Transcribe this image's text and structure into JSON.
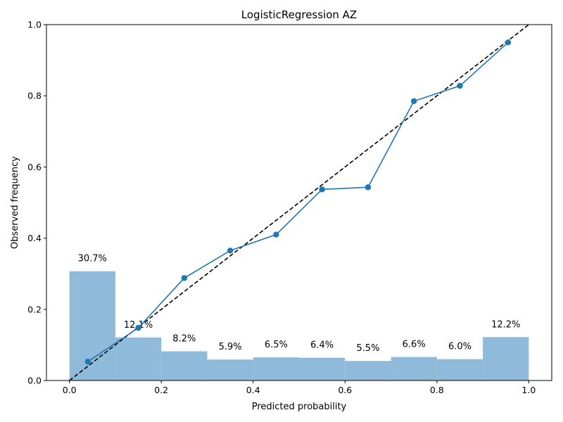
{
  "chart_data": {
    "type": "line",
    "title": "LogisticRegression AZ",
    "xlabel": "Predicted probability",
    "ylabel": "Observed frequency",
    "xlim": [
      -0.05,
      1.05
    ],
    "ylim": [
      0.0,
      1.0
    ],
    "x_ticks": [
      0.0,
      0.2,
      0.4,
      0.6,
      0.8,
      1.0
    ],
    "x_tick_labels": [
      "0.0",
      "0.2",
      "0.4",
      "0.6",
      "0.8",
      "1.0"
    ],
    "y_ticks": [
      0.0,
      0.2,
      0.4,
      0.6,
      0.8,
      1.0
    ],
    "y_tick_labels": [
      "0.0",
      "0.2",
      "0.4",
      "0.6",
      "0.8",
      "1.0"
    ],
    "grid": false,
    "colors": {
      "line": "#1f77b4",
      "bars": "#8fbad9",
      "diagonal": "#000000"
    },
    "calibration_curve": {
      "x": [
        0.04,
        0.15,
        0.25,
        0.35,
        0.45,
        0.55,
        0.65,
        0.75,
        0.85,
        0.955
      ],
      "y": [
        0.053,
        0.148,
        0.288,
        0.365,
        0.41,
        0.537,
        0.543,
        0.785,
        0.828,
        0.95
      ]
    },
    "reference_line": {
      "style": "dashed",
      "x": [
        0.0,
        1.0
      ],
      "y": [
        0.0,
        1.0
      ]
    },
    "histogram": {
      "bin_edges": [
        0.0,
        0.1,
        0.2,
        0.3,
        0.4,
        0.5,
        0.6,
        0.7,
        0.8,
        0.9,
        1.0
      ],
      "values": [
        0.307,
        0.121,
        0.082,
        0.059,
        0.065,
        0.064,
        0.055,
        0.066,
        0.06,
        0.122
      ],
      "labels": [
        "30.7%",
        "12.1%",
        "8.2%",
        "5.9%",
        "6.5%",
        "6.4%",
        "5.5%",
        "6.6%",
        "6.0%",
        "12.2%"
      ]
    }
  }
}
